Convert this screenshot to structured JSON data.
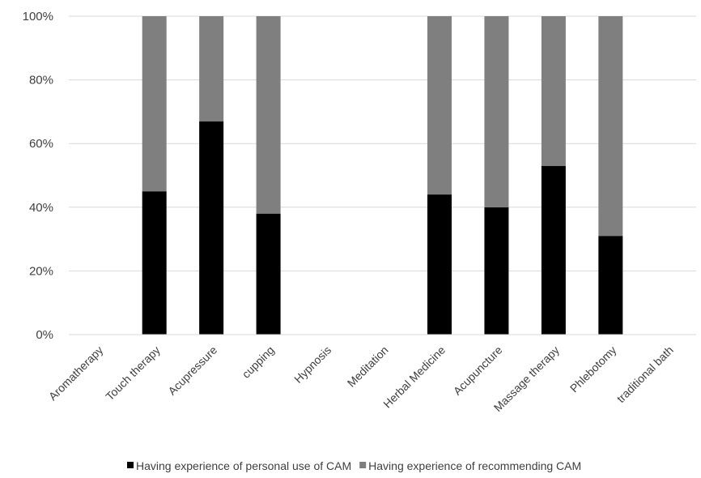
{
  "chart_data": {
    "type": "bar",
    "stacked": true,
    "percent_scale": true,
    "categories": [
      "Aromatherapy",
      "Touch therapy",
      "Acupressure",
      "cupping",
      "Hypnosis",
      "Meditation",
      "Herbal Medicine",
      "Acupuncture",
      "Massage therapy",
      "Phlebotomy",
      "traditional bath"
    ],
    "series": [
      {
        "name": "Having experience of personal use of CAM",
        "color": "#000000",
        "values": [
          0,
          45,
          67,
          38,
          0,
          0,
          44,
          40,
          53,
          31,
          0
        ]
      },
      {
        "name": "Having experience of recommending CAM",
        "color": "#7f7f7f",
        "values": [
          0,
          55,
          33,
          62,
          0,
          0,
          56,
          60,
          47,
          69,
          0
        ]
      }
    ],
    "ylim": [
      0,
      100
    ],
    "yticks": [
      "0%",
      "20%",
      "40%",
      "60%",
      "80%",
      "100%"
    ],
    "grid": true,
    "legend_position": "bottom",
    "title": "",
    "xlabel": "",
    "ylabel": ""
  }
}
